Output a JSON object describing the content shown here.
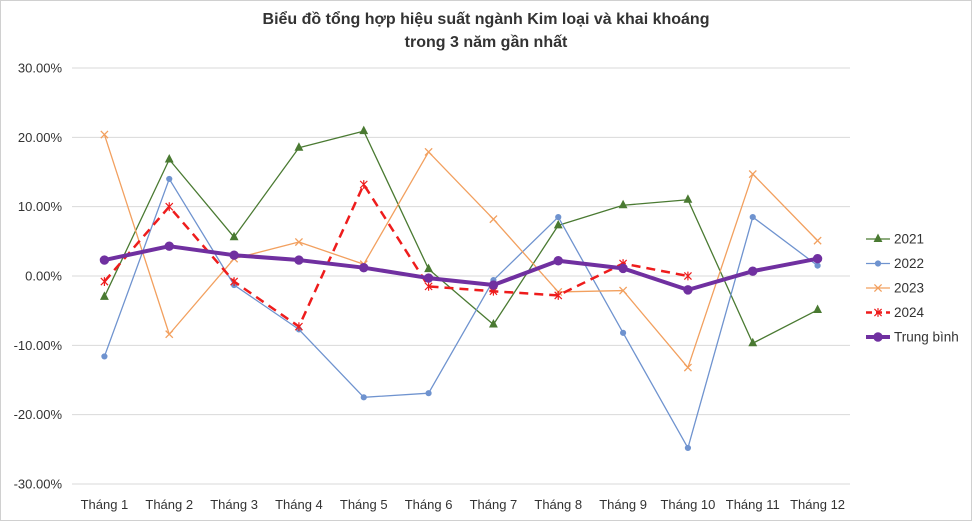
{
  "chart_data": {
    "type": "line",
    "title_lines": [
      "Biểu đồ tổng hợp hiệu suất ngành Kim loại và khai khoáng",
      "trong 3 năm gần nhất"
    ],
    "categories": [
      "Tháng 1",
      "Tháng 2",
      "Tháng 3",
      "Tháng 4",
      "Tháng 5",
      "Tháng 6",
      "Tháng 7",
      "Tháng 8",
      "Tháng 9",
      "Tháng 10",
      "Tháng 11",
      "Tháng 12"
    ],
    "ylim": [
      -0.3,
      0.3
    ],
    "y_ticks": [
      -0.3,
      -0.2,
      -0.1,
      0.0,
      0.1,
      0.2,
      0.3
    ],
    "y_tick_labels": [
      "-30.00%",
      "-20.00%",
      "-10.00%",
      "0.00%",
      "10.00%",
      "20.00%",
      "30.00%"
    ],
    "grid": true,
    "legend_position": "right",
    "series": [
      {
        "name": "2021",
        "color": "#4a7a32",
        "marker": "triangle",
        "dash": "solid",
        "width": 1.3,
        "values": [
          -0.03,
          0.168,
          0.056,
          0.185,
          0.209,
          0.01,
          -0.07,
          0.073,
          0.102,
          0.11,
          -0.097,
          -0.049
        ]
      },
      {
        "name": "2022",
        "color": "#6f93cf",
        "marker": "circle",
        "dash": "solid",
        "width": 1.3,
        "values": [
          -0.116,
          0.14,
          -0.013,
          -0.077,
          -0.175,
          -0.169,
          -0.006,
          0.085,
          -0.082,
          -0.248,
          0.085,
          0.015
        ]
      },
      {
        "name": "2023",
        "color": "#f2a05f",
        "marker": "x",
        "dash": "solid",
        "width": 1.3,
        "values": [
          0.204,
          -0.084,
          0.025,
          0.049,
          0.017,
          0.179,
          0.082,
          -0.023,
          -0.021,
          -0.132,
          0.147,
          0.051
        ]
      },
      {
        "name": "2024",
        "color": "#ee1c1c",
        "marker": "star",
        "dash": "dashed",
        "width": 2.5,
        "values": [
          -0.008,
          0.1,
          -0.008,
          -0.073,
          0.132,
          -0.015,
          -0.022,
          -0.028,
          0.018,
          0.0,
          null,
          null
        ]
      },
      {
        "name": "Trung bình",
        "color": "#7030a0",
        "marker": "circle",
        "dash": "solid",
        "width": 4,
        "values": [
          0.023,
          0.043,
          0.03,
          0.023,
          0.012,
          -0.003,
          -0.013,
          0.022,
          0.011,
          -0.02,
          0.007,
          0.025
        ]
      }
    ]
  }
}
